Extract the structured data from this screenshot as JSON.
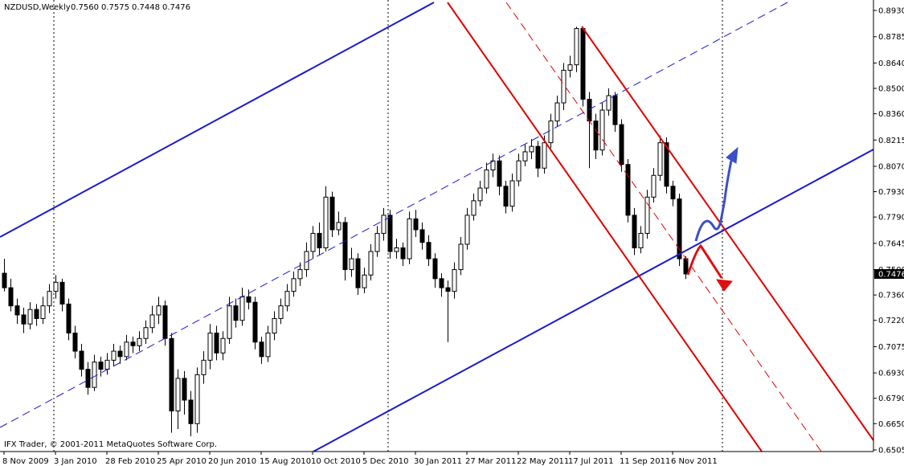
{
  "chart_data": {
    "type": "candlestick",
    "title": "NZDUSD,Weekly",
    "values": [
      0.756,
      0.7575,
      0.7448,
      0.7476
    ],
    "value_labels": [
      "0.7560",
      "0.7575",
      "0.7448",
      "0.7476"
    ],
    "footer": "IFX Trader, © 2001-2011 MetaQuotes Software Corp.",
    "up_color": "#ffffff",
    "down_color": "#000000",
    "ylim": [
      0.6505,
      0.893
    ],
    "yticks": [
      {
        "value": 0.893,
        "label": "0.8930"
      },
      {
        "value": 0.8785,
        "label": "0.8785"
      },
      {
        "value": 0.864,
        "label": "0.8640"
      },
      {
        "value": 0.85,
        "label": "0.8500"
      },
      {
        "value": 0.836,
        "label": "0.8360"
      },
      {
        "value": 0.8215,
        "label": "0.8215"
      },
      {
        "value": 0.807,
        "label": "0.8070"
      },
      {
        "value": 0.793,
        "label": "0.7930"
      },
      {
        "value": 0.779,
        "label": "0.7790"
      },
      {
        "value": 0.7645,
        "label": "0.7645"
      },
      {
        "value": 0.75,
        "label": "0.7500"
      },
      {
        "value": 0.736,
        "label": "0.7360"
      },
      {
        "value": 0.722,
        "label": "0.7220"
      },
      {
        "value": 0.7075,
        "label": "0.7075"
      },
      {
        "value": 0.693,
        "label": "0.6930"
      },
      {
        "value": 0.679,
        "label": "0.6790"
      },
      {
        "value": 0.665,
        "label": "0.6650"
      },
      {
        "value": 0.6505,
        "label": "0.6505"
      }
    ],
    "xticks": [
      {
        "value": 0,
        "label": "8 Nov 2009"
      },
      {
        "value": 8,
        "label": "3 Jan 2010"
      },
      {
        "value": 16,
        "label": "28 Feb 2010"
      },
      {
        "value": 24,
        "label": "25 Apr 2010"
      },
      {
        "value": 32,
        "label": "20 Jun 2010"
      },
      {
        "value": 40,
        "label": "15 Aug 2010"
      },
      {
        "value": 48,
        "label": "10 Oct 2010"
      },
      {
        "value": 56,
        "label": "5 Dec 2010"
      },
      {
        "value": 64,
        "label": "30 Jan 2011"
      },
      {
        "value": 72,
        "label": "27 Mar 2011"
      },
      {
        "value": 80,
        "label": "22 May 2011"
      },
      {
        "value": 88,
        "label": "17 Jul 2011"
      },
      {
        "value": 96,
        "label": "11 Sep 2011"
      },
      {
        "value": 104,
        "label": "6 Nov 2011"
      }
    ],
    "candles": [
      [
        0.748,
        0.756,
        0.738,
        0.74
      ],
      [
        0.74,
        0.745,
        0.727,
        0.73
      ],
      [
        0.73,
        0.734,
        0.72,
        0.725
      ],
      [
        0.725,
        0.729,
        0.715,
        0.72
      ],
      [
        0.72,
        0.732,
        0.717,
        0.728
      ],
      [
        0.728,
        0.731,
        0.719,
        0.723
      ],
      [
        0.723,
        0.735,
        0.72,
        0.73
      ],
      [
        0.73,
        0.742,
        0.726,
        0.738
      ],
      [
        0.738,
        0.747,
        0.734,
        0.743
      ],
      [
        0.743,
        0.745,
        0.727,
        0.731
      ],
      [
        0.731,
        0.734,
        0.711,
        0.715
      ],
      [
        0.715,
        0.719,
        0.701,
        0.705
      ],
      [
        0.705,
        0.709,
        0.691,
        0.695
      ],
      [
        0.695,
        0.699,
        0.681,
        0.685
      ],
      [
        0.685,
        0.703,
        0.683,
        0.699
      ],
      [
        0.699,
        0.702,
        0.691,
        0.695
      ],
      [
        0.695,
        0.704,
        0.692,
        0.7
      ],
      [
        0.7,
        0.709,
        0.697,
        0.705
      ],
      [
        0.705,
        0.708,
        0.698,
        0.702
      ],
      [
        0.702,
        0.714,
        0.7,
        0.71
      ],
      [
        0.71,
        0.713,
        0.704,
        0.708
      ],
      [
        0.708,
        0.716,
        0.705,
        0.712
      ],
      [
        0.712,
        0.722,
        0.709,
        0.718
      ],
      [
        0.718,
        0.73,
        0.715,
        0.725
      ],
      [
        0.725,
        0.735,
        0.72,
        0.73
      ],
      [
        0.73,
        0.733,
        0.708,
        0.712
      ],
      [
        0.712,
        0.715,
        0.66,
        0.672
      ],
      [
        0.672,
        0.695,
        0.662,
        0.69
      ],
      [
        0.69,
        0.694,
        0.67,
        0.678
      ],
      [
        0.678,
        0.683,
        0.658,
        0.665
      ],
      [
        0.665,
        0.696,
        0.66,
        0.692
      ],
      [
        0.692,
        0.705,
        0.687,
        0.7
      ],
      [
        0.7,
        0.72,
        0.695,
        0.715
      ],
      [
        0.715,
        0.719,
        0.7,
        0.704
      ],
      [
        0.704,
        0.716,
        0.7,
        0.712
      ],
      [
        0.712,
        0.735,
        0.709,
        0.73
      ],
      [
        0.73,
        0.734,
        0.718,
        0.722
      ],
      [
        0.722,
        0.74,
        0.719,
        0.735
      ],
      [
        0.735,
        0.739,
        0.728,
        0.732
      ],
      [
        0.732,
        0.735,
        0.706,
        0.71
      ],
      [
        0.71,
        0.713,
        0.698,
        0.702
      ],
      [
        0.702,
        0.719,
        0.699,
        0.715
      ],
      [
        0.715,
        0.727,
        0.711,
        0.723
      ],
      [
        0.723,
        0.734,
        0.72,
        0.73
      ],
      [
        0.73,
        0.742,
        0.727,
        0.738
      ],
      [
        0.738,
        0.749,
        0.735,
        0.745
      ],
      [
        0.745,
        0.754,
        0.741,
        0.75
      ],
      [
        0.75,
        0.765,
        0.746,
        0.76
      ],
      [
        0.76,
        0.774,
        0.756,
        0.77
      ],
      [
        0.77,
        0.776,
        0.758,
        0.762
      ],
      [
        0.762,
        0.796,
        0.76,
        0.79
      ],
      [
        0.79,
        0.793,
        0.768,
        0.772
      ],
      [
        0.772,
        0.782,
        0.769,
        0.776
      ],
      [
        0.776,
        0.779,
        0.744,
        0.75
      ],
      [
        0.75,
        0.762,
        0.746,
        0.756
      ],
      [
        0.756,
        0.759,
        0.736,
        0.74
      ],
      [
        0.74,
        0.751,
        0.737,
        0.747
      ],
      [
        0.747,
        0.764,
        0.744,
        0.76
      ],
      [
        0.76,
        0.774,
        0.757,
        0.77
      ],
      [
        0.77,
        0.784,
        0.766,
        0.78
      ],
      [
        0.78,
        0.783,
        0.756,
        0.76
      ],
      [
        0.76,
        0.767,
        0.756,
        0.762
      ],
      [
        0.762,
        0.765,
        0.752,
        0.756
      ],
      [
        0.756,
        0.782,
        0.753,
        0.778
      ],
      [
        0.778,
        0.783,
        0.768,
        0.772
      ],
      [
        0.772,
        0.776,
        0.761,
        0.765
      ],
      [
        0.765,
        0.769,
        0.752,
        0.756
      ],
      [
        0.756,
        0.759,
        0.74,
        0.745
      ],
      [
        0.745,
        0.748,
        0.735,
        0.74
      ],
      [
        0.74,
        0.744,
        0.71,
        0.738
      ],
      [
        0.738,
        0.754,
        0.734,
        0.75
      ],
      [
        0.75,
        0.768,
        0.747,
        0.764
      ],
      [
        0.764,
        0.784,
        0.761,
        0.78
      ],
      [
        0.78,
        0.792,
        0.777,
        0.788
      ],
      [
        0.788,
        0.799,
        0.785,
        0.795
      ],
      [
        0.795,
        0.809,
        0.792,
        0.805
      ],
      [
        0.805,
        0.814,
        0.801,
        0.81
      ],
      [
        0.81,
        0.813,
        0.791,
        0.796
      ],
      [
        0.796,
        0.799,
        0.781,
        0.785
      ],
      [
        0.785,
        0.803,
        0.782,
        0.799
      ],
      [
        0.799,
        0.814,
        0.796,
        0.81
      ],
      [
        0.81,
        0.819,
        0.807,
        0.815
      ],
      [
        0.815,
        0.822,
        0.811,
        0.818
      ],
      [
        0.818,
        0.821,
        0.801,
        0.806
      ],
      [
        0.806,
        0.824,
        0.803,
        0.82
      ],
      [
        0.82,
        0.836,
        0.817,
        0.832
      ],
      [
        0.832,
        0.846,
        0.829,
        0.842
      ],
      [
        0.842,
        0.864,
        0.838,
        0.86
      ],
      [
        0.86,
        0.868,
        0.856,
        0.863
      ],
      [
        0.863,
        0.884,
        0.859,
        0.883
      ],
      [
        0.883,
        0.884,
        0.84,
        0.844
      ],
      [
        0.844,
        0.848,
        0.806,
        0.832
      ],
      [
        0.832,
        0.836,
        0.811,
        0.816
      ],
      [
        0.816,
        0.842,
        0.813,
        0.838
      ],
      [
        0.838,
        0.85,
        0.835,
        0.846
      ],
      [
        0.846,
        0.848,
        0.826,
        0.83
      ],
      [
        0.83,
        0.833,
        0.804,
        0.808
      ],
      [
        0.808,
        0.811,
        0.776,
        0.78
      ],
      [
        0.78,
        0.784,
        0.758,
        0.762
      ],
      [
        0.762,
        0.774,
        0.759,
        0.77
      ],
      [
        0.77,
        0.794,
        0.767,
        0.79
      ],
      [
        0.79,
        0.806,
        0.787,
        0.802
      ],
      [
        0.802,
        0.824,
        0.799,
        0.82
      ],
      [
        0.82,
        0.823,
        0.792,
        0.796
      ],
      [
        0.796,
        0.799,
        0.785,
        0.789
      ],
      [
        0.789,
        0.792,
        0.752,
        0.756
      ],
      [
        0.756,
        0.7575,
        0.7448,
        0.7476
      ]
    ]
  }
}
